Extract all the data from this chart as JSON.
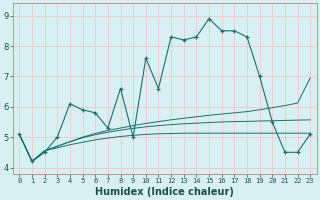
{
  "xlabel": "Humidex (Indice chaleur)",
  "background_color": "#d8eff4",
  "grid_color": "#f0c8c8",
  "line_color": "#1a7070",
  "x_values": [
    0,
    1,
    2,
    3,
    4,
    5,
    6,
    7,
    8,
    9,
    10,
    11,
    12,
    13,
    14,
    15,
    16,
    17,
    18,
    19,
    20,
    21,
    22,
    23
  ],
  "series": {
    "main": [
      5.1,
      4.2,
      4.5,
      5.0,
      6.1,
      5.9,
      5.8,
      5.3,
      6.6,
      5.0,
      7.6,
      6.6,
      8.3,
      8.2,
      8.3,
      8.9,
      8.5,
      8.5,
      8.3,
      7.0,
      5.5,
      4.5,
      4.5,
      5.1
    ],
    "trend1": [
      5.1,
      4.2,
      4.55,
      4.65,
      4.75,
      4.83,
      4.91,
      4.97,
      5.02,
      5.06,
      5.09,
      5.11,
      5.12,
      5.13,
      5.13,
      5.13,
      5.13,
      5.13,
      5.13,
      5.13,
      5.13,
      5.13,
      5.13,
      5.13
    ],
    "trend2": [
      5.1,
      4.2,
      4.55,
      4.7,
      4.85,
      4.98,
      5.08,
      5.16,
      5.23,
      5.29,
      5.34,
      5.38,
      5.41,
      5.44,
      5.46,
      5.48,
      5.5,
      5.51,
      5.52,
      5.53,
      5.54,
      5.55,
      5.56,
      5.57
    ],
    "trend3": [
      5.1,
      4.2,
      4.55,
      4.7,
      4.85,
      5.0,
      5.12,
      5.22,
      5.3,
      5.38,
      5.45,
      5.51,
      5.57,
      5.62,
      5.67,
      5.72,
      5.76,
      5.8,
      5.84,
      5.9,
      5.97,
      6.04,
      6.12,
      6.95
    ]
  },
  "ylim": [
    3.8,
    9.4
  ],
  "yticks": [
    4,
    5,
    6,
    7,
    8,
    9
  ],
  "xlim": [
    -0.5,
    23.5
  ]
}
